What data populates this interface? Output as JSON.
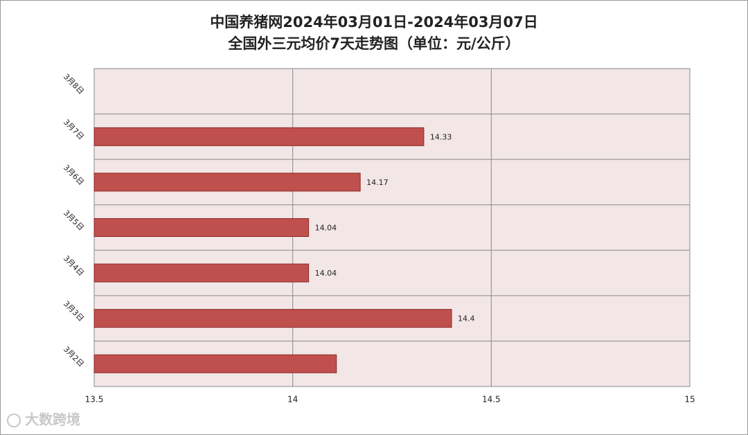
{
  "chart_data": {
    "type": "hbar",
    "title": "中国养猪网2024年03月01日-2024年03月07日",
    "subtitle": "全国外三元均价7天走势图（单位：元/公斤）",
    "categories": [
      "3月2日",
      "3月3日",
      "3月4日",
      "3月5日",
      "3月6日",
      "3月7日",
      "3月8日"
    ],
    "values": [
      14.11,
      14.4,
      14.04,
      14.04,
      14.17,
      14.33,
      null
    ],
    "value_labels": [
      null,
      "14.4",
      "14.04",
      "14.04",
      "14.17",
      "14.33",
      null
    ],
    "color": "#c0504d",
    "xlim": [
      13.5,
      15
    ],
    "xticks": [
      13.5,
      14,
      14.5,
      15
    ],
    "grid": true,
    "watermark": "大数跨境"
  }
}
